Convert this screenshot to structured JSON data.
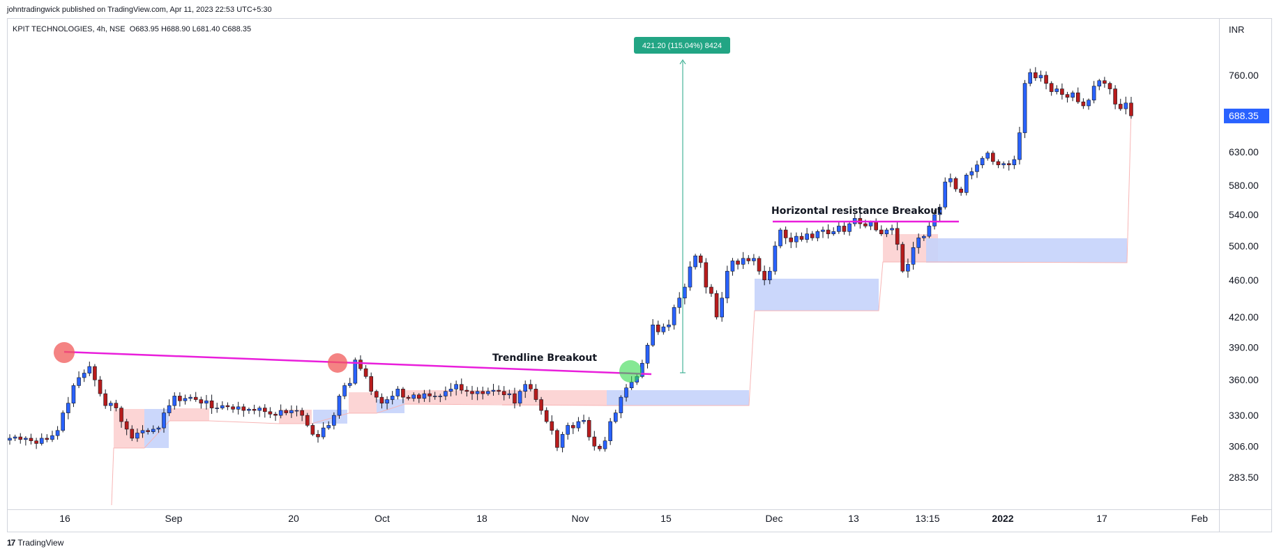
{
  "header": {
    "published_by": "johntradingwick published on TradingView.com, Apr 11, 2023 22:53 UTC+5:30"
  },
  "legend": {
    "symbol": "KPIT TECHNOLOGIES, 4h, NSE",
    "open": "O683.95",
    "high": "H688.90",
    "low": "L681.40",
    "close": "C688.35"
  },
  "footer": {
    "brand": "TradingView"
  },
  "colors": {
    "bull": "#2962ff",
    "bear": "#b71c1c",
    "trendline": "#e91edb",
    "demand_zone": "#c5d3fb",
    "supply_zone": "#fcd0d0",
    "measure": "#22a584",
    "last_price_bg": "#2962ff"
  },
  "chart_data": {
    "type": "candlestick",
    "title": "",
    "currency": "INR",
    "y_scale": "log",
    "y_ticks": [
      760.0,
      630.0,
      580.0,
      540.0,
      500.0,
      460.0,
      420.0,
      390.0,
      360.0,
      330.0,
      306.0,
      283.5
    ],
    "y_tick_labels": [
      "760.00",
      "630.00",
      "580.00",
      "540.00",
      "500.00",
      "460.00",
      "420.00",
      "390.00",
      "360.00",
      "330.00",
      "306.00",
      "283.50"
    ],
    "x_tick_labels": [
      "16",
      "Sep",
      "20",
      "Oct",
      "18",
      "Nov",
      "15",
      "Dec",
      "13",
      "13:15",
      "2022",
      "17",
      "Feb"
    ],
    "last_price": "688.35",
    "measure_label": "421.20 (115.04%) 8424",
    "annotations": {
      "trendline": "Trendline Breakout",
      "horizontal": "Horizontal resistance Breakout"
    },
    "closes": [
      312,
      313,
      311,
      312,
      310,
      308,
      312,
      311,
      314,
      318,
      332,
      340,
      355,
      362,
      366,
      372,
      360,
      348,
      338,
      340,
      336,
      325,
      319,
      312,
      316,
      318,
      317,
      319,
      320,
      332,
      338,
      346,
      342,
      344,
      345,
      343,
      340,
      342,
      336,
      336,
      338,
      337,
      335,
      337,
      334,
      335,
      334,
      336,
      333,
      331,
      330,
      334,
      332,
      334,
      334,
      330,
      322,
      315,
      313,
      320,
      322,
      330,
      346,
      355,
      357,
      378,
      370,
      363,
      350,
      345,
      340,
      343,
      346,
      352,
      345,
      344,
      347,
      344,
      348,
      346,
      346,
      346,
      350,
      352,
      356,
      351,
      350,
      348,
      350,
      348,
      350,
      351,
      350,
      347,
      348,
      340,
      350,
      356,
      352,
      343,
      334,
      325,
      318,
      305,
      315,
      322,
      320,
      325,
      326,
      313,
      306,
      304,
      310,
      325,
      332,
      345,
      353,
      358,
      363,
      375,
      392,
      412,
      405,
      410,
      412,
      430,
      440,
      452,
      475,
      488,
      480,
      452,
      445,
      420,
      440,
      470,
      482,
      478,
      485,
      482,
      485,
      470,
      460,
      470,
      500,
      520,
      510,
      505,
      512,
      508,
      515,
      510,
      518,
      520,
      515,
      518,
      525,
      518,
      528,
      535,
      528,
      525,
      530,
      520,
      515,
      520,
      522,
      502,
      470,
      478,
      498,
      510,
      512,
      525,
      540,
      550,
      585,
      590,
      575,
      570,
      595,
      600,
      610,
      620,
      628,
      615,
      610,
      612,
      610,
      618,
      660,
      745,
      765,
      755,
      760,
      745,
      730,
      735,
      725,
      720,
      728,
      712,
      705,
      715,
      740,
      750,
      745,
      735,
      708,
      700,
      710,
      688
    ]
  }
}
